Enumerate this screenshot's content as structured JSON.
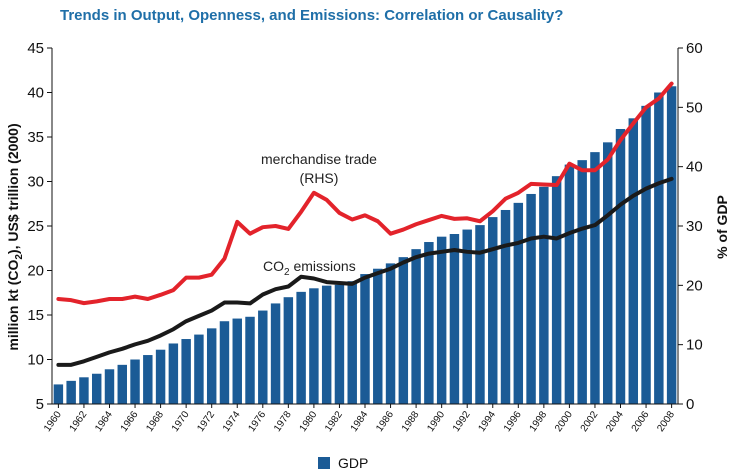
{
  "chart_data": {
    "type": "bar",
    "title": "Trends in Output, Openness, and Emissions: Correlation or Causality?",
    "ylabel_left_prefix": "million kt (CO",
    "ylabel_left_sub": "2",
    "ylabel_left_suffix": "),  US$ trillion (2000)",
    "ylabel_right": "% of GDP",
    "ylim_left": [
      5,
      45
    ],
    "ylim_right": [
      0,
      60
    ],
    "yticks_left": [
      5,
      10,
      15,
      20,
      25,
      30,
      35,
      40,
      45
    ],
    "yticks_right": [
      0,
      10,
      20,
      30,
      40,
      50,
      60
    ],
    "x": [
      1960,
      1961,
      1962,
      1963,
      1964,
      1965,
      1966,
      1967,
      1968,
      1969,
      1970,
      1971,
      1972,
      1973,
      1974,
      1975,
      1976,
      1977,
      1978,
      1979,
      1980,
      1981,
      1982,
      1983,
      1984,
      1985,
      1986,
      1987,
      1988,
      1989,
      1990,
      1991,
      1992,
      1993,
      1994,
      1995,
      1996,
      1997,
      1998,
      1999,
      2000,
      2001,
      2002,
      2003,
      2004,
      2005,
      2006,
      2007,
      2008
    ],
    "xticks": [
      "1960",
      "1962",
      "1964",
      "1966",
      "1968",
      "1970",
      "1972",
      "1974",
      "1976",
      "1978",
      "1980",
      "1982",
      "1984",
      "1986",
      "1988",
      "1990",
      "1992",
      "1994",
      "1996",
      "1998",
      "2000",
      "2002",
      "2004",
      "2006",
      "2008"
    ],
    "series": [
      {
        "name": "GDP",
        "type": "bar",
        "axis": "left",
        "color": "#1b5b96",
        "values": [
          7.2,
          7.6,
          8.0,
          8.4,
          8.9,
          9.4,
          10.0,
          10.5,
          11.1,
          11.8,
          12.3,
          12.8,
          13.5,
          14.3,
          14.6,
          14.8,
          15.5,
          16.3,
          17.0,
          17.6,
          18.0,
          18.3,
          18.4,
          18.8,
          19.6,
          20.2,
          20.8,
          21.5,
          22.4,
          23.2,
          23.8,
          24.1,
          24.6,
          25.1,
          26.0,
          26.8,
          27.6,
          28.6,
          29.4,
          30.6,
          31.9,
          32.4,
          33.3,
          34.4,
          35.9,
          37.1,
          38.5,
          40.0,
          40.7
        ]
      },
      {
        "name": "CO2 emissions",
        "type": "line",
        "axis": "left",
        "color": "#1a1a1a",
        "values": [
          9.4,
          9.4,
          9.8,
          10.3,
          10.8,
          11.2,
          11.7,
          12.1,
          12.7,
          13.4,
          14.3,
          14.9,
          15.5,
          16.4,
          16.4,
          16.3,
          17.3,
          17.9,
          18.2,
          19.3,
          19.1,
          18.7,
          18.6,
          18.5,
          19.2,
          19.7,
          20.2,
          20.9,
          21.5,
          21.9,
          22.1,
          22.3,
          22.1,
          22.0,
          22.4,
          22.8,
          23.1,
          23.6,
          23.8,
          23.6,
          24.2,
          24.7,
          25.1,
          26.2,
          27.4,
          28.4,
          29.2,
          29.8,
          30.3
        ]
      },
      {
        "name": "merchandise trade",
        "type": "line",
        "axis": "right",
        "color": "#e3232b",
        "values": [
          17.7,
          17.5,
          17.0,
          17.3,
          17.7,
          17.7,
          18.1,
          17.7,
          18.4,
          19.2,
          21.3,
          21.3,
          21.8,
          24.5,
          30.7,
          28.7,
          29.8,
          30.0,
          29.5,
          32.4,
          35.6,
          34.4,
          32.2,
          31.1,
          31.8,
          30.8,
          28.7,
          29.4,
          30.3,
          31.0,
          31.7,
          31.2,
          31.3,
          30.8,
          32.5,
          34.6,
          35.6,
          37.1,
          37.0,
          36.9,
          40.5,
          39.4,
          39.4,
          41.2,
          44.5,
          47.3,
          50.0,
          51.5,
          54.0
        ]
      }
    ],
    "annotations": {
      "trade_line1": "merchandise trade",
      "trade_line2": "(RHS)",
      "co2_prefix": "CO",
      "co2_sub": "2",
      "co2_suffix": " emissions"
    },
    "legend": {
      "label": "GDP",
      "placement": "bottom-center"
    },
    "grid": false
  }
}
